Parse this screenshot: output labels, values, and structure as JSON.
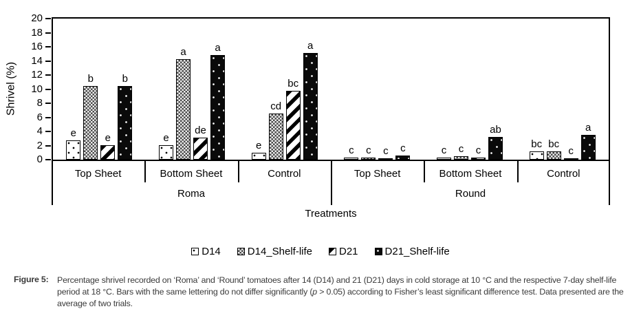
{
  "chart_data": {
    "type": "bar",
    "title": "",
    "ylabel": "Shrivel (%)",
    "xlabel": "Treatments",
    "ylim": [
      0,
      20
    ],
    "yticks": [
      0,
      2,
      4,
      6,
      8,
      10,
      12,
      14,
      16,
      18,
      20
    ],
    "grid": false,
    "legend_position": "bottom",
    "series": [
      "D14",
      "D14_Shelf-life",
      "D21",
      "D21_Shelf-life"
    ],
    "cultivar_groups": [
      {
        "cultivar": "Roma",
        "treatments": [
          {
            "label": "Top Sheet",
            "values": [
              2.7,
              10.4,
              2.0,
              10.4
            ],
            "letters": [
              "e",
              "b",
              "e",
              "b"
            ]
          },
          {
            "label": "Bottom Sheet",
            "values": [
              2.0,
              14.2,
              3.1,
              14.8
            ],
            "letters": [
              "e",
              "a",
              "de",
              "a"
            ]
          },
          {
            "label": "Control",
            "values": [
              1.0,
              6.5,
              9.8,
              15.1
            ],
            "letters": [
              "e",
              "cd",
              "bc",
              "a"
            ]
          }
        ]
      },
      {
        "cultivar": "Round",
        "treatments": [
          {
            "label": "Top Sheet",
            "values": [
              0.3,
              0.3,
              0.1,
              0.6
            ],
            "letters": [
              "c",
              "c",
              "c",
              "c"
            ]
          },
          {
            "label": "Bottom Sheet",
            "values": [
              0.3,
              0.5,
              0.3,
              3.2
            ],
            "letters": [
              "c",
              "c",
              "c",
              "ab"
            ]
          },
          {
            "label": "Control",
            "values": [
              1.2,
              1.2,
              0.1,
              3.5
            ],
            "letters": [
              "bc",
              "bc",
              "c",
              "a"
            ]
          }
        ]
      }
    ]
  },
  "legend": {
    "items": [
      {
        "label": "D14",
        "pattern": "dots-on-white"
      },
      {
        "label": "D14_Shelf-life",
        "pattern": "gray-checker"
      },
      {
        "label": "D21",
        "pattern": "diagonal-stripes"
      },
      {
        "label": "D21_Shelf-life",
        "pattern": "dots-on-black"
      }
    ]
  },
  "figure": {
    "caption_label": "Figure 5:",
    "caption_part1": "Percentage shrivel recorded on ‘Roma’ and ‘Round’ tomatoes after 14 (D14) and 21 (D21) days in cold storage at 10 °C and the respective 7-day shelf-life period at 18 °C. Bars with the same lettering do not differ significantly (",
    "caption_italic": "p",
    "caption_part2": " > 0.05) according to Fisher’s least significant difference test. Data presented are the average of two trials."
  },
  "colors": {
    "bar_outline": "#000000",
    "black_fill": "#0a0a0a",
    "checker_dark": "#4b4b4b",
    "caption_text": "#3a3a3a"
  }
}
